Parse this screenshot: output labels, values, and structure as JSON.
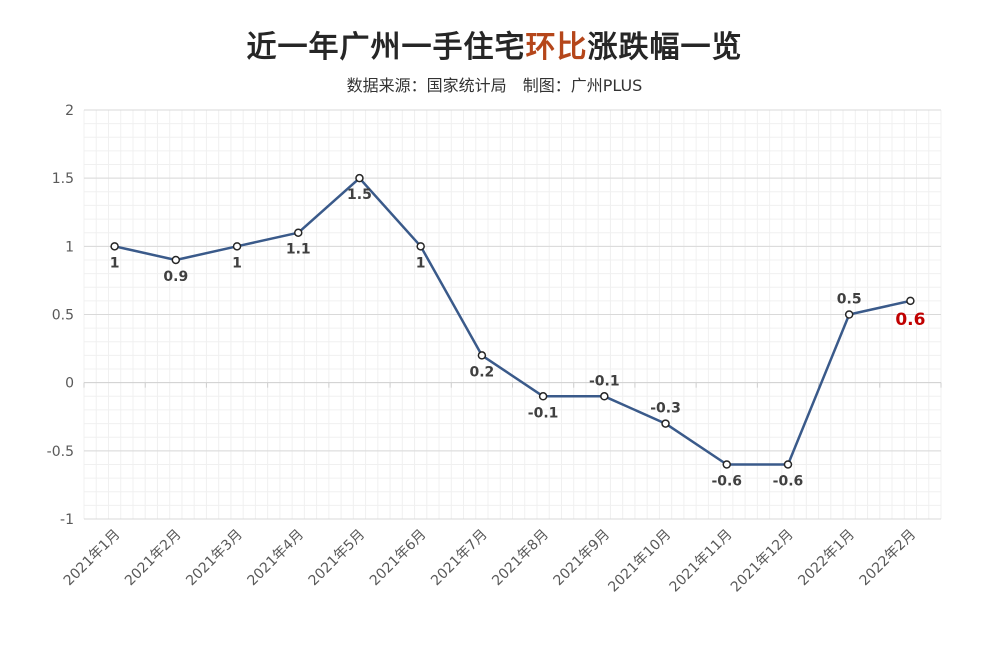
{
  "header": {
    "title_part1": "近一年广州一手住宅",
    "title_highlight": "环比",
    "title_part2": "涨跌幅一览",
    "source": "数据来源：国家统计局",
    "maker": "制图：广州PLUS"
  },
  "chart_data": {
    "type": "line",
    "title": "近一年广州一手住宅环比涨跌幅一览",
    "subtitle": "数据来源：国家统计局   制图：广州PLUS",
    "categories": [
      "2021年1月",
      "2021年2月",
      "2021年3月",
      "2021年4月",
      "2021年5月",
      "2021年6月",
      "2021年7月",
      "2021年8月",
      "2021年9月",
      "2021年10月",
      "2021年11月",
      "2021年12月",
      "2022年1月",
      "2022年2月"
    ],
    "series": [
      {
        "values": [
          1,
          0.9,
          1,
          1.1,
          1.5,
          1,
          0.2,
          -0.1,
          -0.1,
          -0.3,
          -0.6,
          -0.6,
          0.5,
          0.6
        ]
      }
    ],
    "data_labels": [
      "1",
      "0.9",
      "1",
      "1.1",
      "1.5",
      "1",
      "0.2",
      "-0.1",
      "-0.1",
      "-0.3",
      "-0.6",
      "-0.6",
      "0.5",
      "0.6"
    ],
    "label_positions": [
      "below",
      "below",
      "below",
      "below",
      "below",
      "below",
      "below",
      "below",
      "above",
      "above",
      "below",
      "below",
      "above",
      "below"
    ],
    "highlight_index": 13,
    "ylim": [
      -1,
      2
    ],
    "yticks": [
      -1,
      -0.5,
      0,
      0.5,
      1,
      1.5,
      2
    ],
    "ytick_labels": [
      "-1",
      "-0.5",
      "0",
      "0.5",
      "1",
      "1.5",
      "2"
    ],
    "xlabel": "",
    "ylabel": "",
    "grid": true,
    "line_color": "#3a5a8a",
    "highlight_color": "#c00000",
    "title_highlight_color": "#b5461a"
  }
}
